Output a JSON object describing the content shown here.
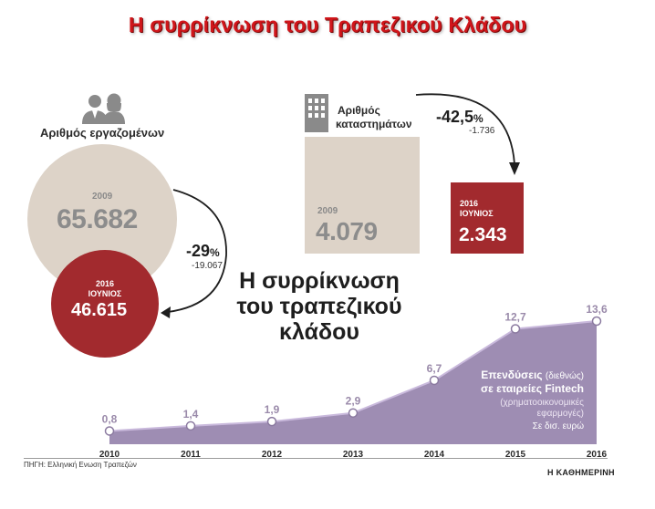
{
  "banner_title": "Η συρρίκνωση του Τραπεζικού Κλάδου",
  "employees": {
    "label": "Αριθμός εργαζομένων",
    "year_2009_label": "2009",
    "value_2009": "65.682",
    "year_2016_label_line1": "2016",
    "year_2016_label_line2": "ΙΟΥΝΙΟΣ",
    "value_2016": "46.615",
    "change_pct": "-29",
    "pct_sign": "%",
    "change_abs": "-19.067"
  },
  "branches": {
    "label_line1": "Αριθμός",
    "label_line2": "καταστημάτων",
    "year_2009_label": "2009",
    "value_2009": "4.079",
    "year_2016_label_line1": "2016",
    "year_2016_label_line2": "ΙΟΥΝΙΟΣ",
    "value_2016": "2.343",
    "change_pct": "-42,5",
    "pct_sign": "%",
    "change_abs": "-1.736"
  },
  "main_title_line1": "Η συρρίκνωση",
  "main_title_line2": "του τραπεζικού",
  "main_title_line3": "κλάδου",
  "fintech": {
    "title_word1": "Επενδύσεις",
    "title_paren": "(διεθνώς)",
    "title_line2": "σε εταιρείες Fintech",
    "sub_line1": "(χρηματοοικονομικές",
    "sub_line2": "εφαρμογές)",
    "unit": "Σε δισ. ευρώ"
  },
  "source": "ΠΗΓΗ: Ελληνική Ενωση Τραπεζών",
  "publisher": "Η ΚΑΘΗΜΕΡΙΝΗ",
  "colors": {
    "banner_red": "#d0161b",
    "beige": "#ddd3c8",
    "dark_red": "#a22a2e",
    "purple_area": "#9e8db3",
    "purple_line": "#c9b9dc"
  },
  "chart_data": [
    {
      "type": "area",
      "x": [
        "2010",
        "2011",
        "2012",
        "2013",
        "2014",
        "2015",
        "2016"
      ],
      "series": [
        {
          "values": [
            0.8,
            1.4,
            1.9,
            2.9,
            6.7,
            12.7,
            13.6
          ]
        }
      ],
      "data_labels": [
        "0,8",
        "1,4",
        "1,9",
        "2,9",
        "6,7",
        "12,7",
        "13,6"
      ],
      "ylim": [
        0,
        13.6
      ]
    },
    {
      "type": "bar",
      "categories": [
        "2009",
        "2016 ΙΟΥΝΙΟΣ"
      ],
      "values": [
        4079,
        2343
      ]
    }
  ]
}
